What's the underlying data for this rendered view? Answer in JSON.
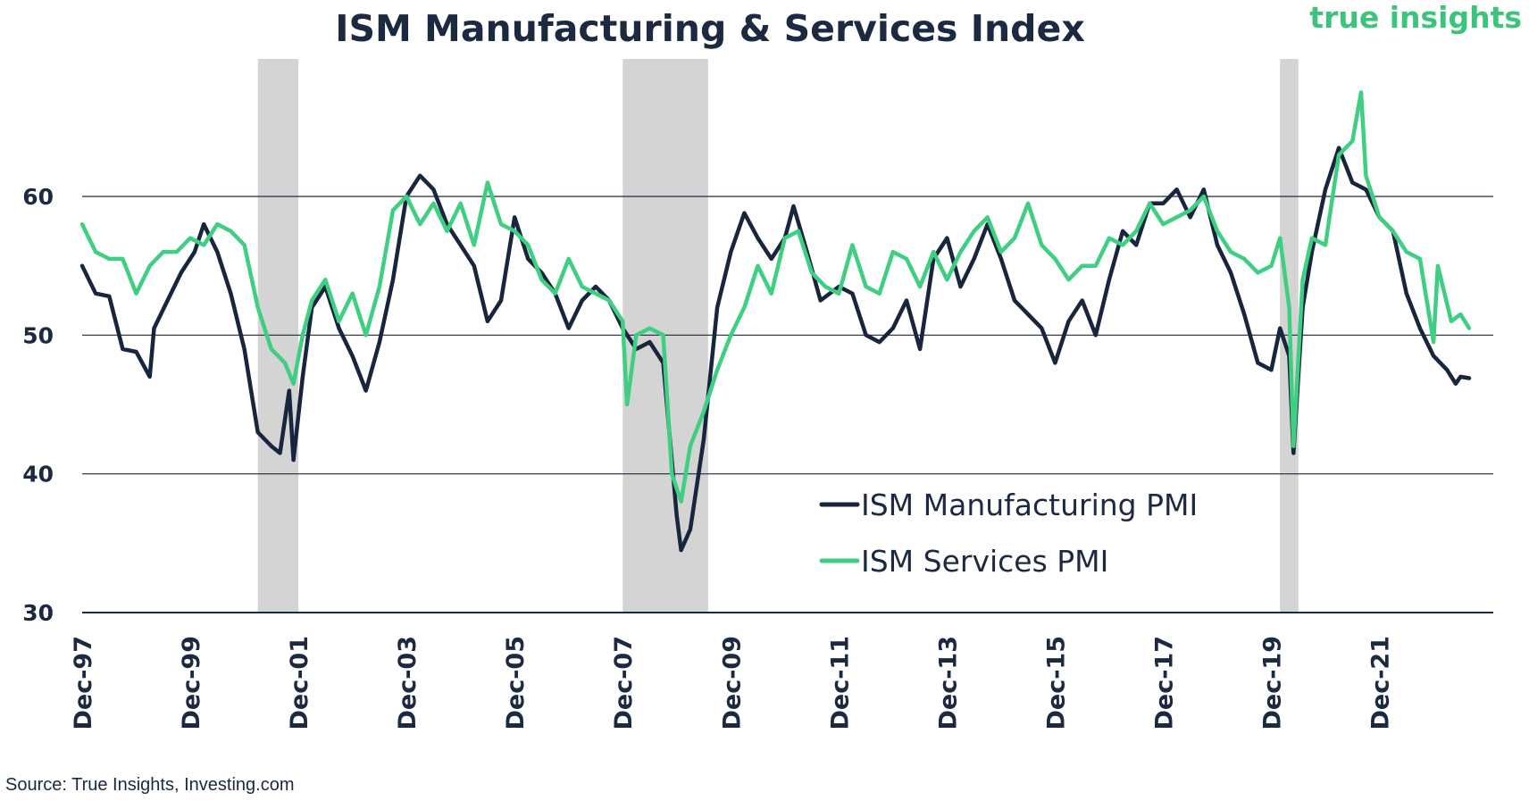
{
  "header": {
    "title": "ISM Manufacturing & Services Index",
    "brand": "true insights"
  },
  "footer": {
    "source": "Source: True Insights, Investing.com"
  },
  "colors": {
    "manufacturing": "#17253d",
    "services": "#3fcf82",
    "recession_shade": "#d4d4d4",
    "gridline": "#1b2a41"
  },
  "chart_data": {
    "type": "line",
    "title": "ISM Manufacturing & Services Index",
    "xlabel": "",
    "ylabel": "",
    "ylim": [
      30,
      69
    ],
    "yticks": [
      30,
      40,
      50,
      60
    ],
    "grid": true,
    "legend_position": "bottom-right",
    "xticks": [
      {
        "label": "Dec-97",
        "year": 1997.92
      },
      {
        "label": "Dec-99",
        "year": 1999.92
      },
      {
        "label": "Dec-01",
        "year": 2001.92
      },
      {
        "label": "Dec-03",
        "year": 2003.92
      },
      {
        "label": "Dec-05",
        "year": 2005.92
      },
      {
        "label": "Dec-07",
        "year": 2007.92
      },
      {
        "label": "Dec-09",
        "year": 2009.92
      },
      {
        "label": "Dec-11",
        "year": 2011.92
      },
      {
        "label": "Dec-13",
        "year": 2013.92
      },
      {
        "label": "Dec-15",
        "year": 2015.92
      },
      {
        "label": "Dec-17",
        "year": 2017.92
      },
      {
        "label": "Dec-19",
        "year": 2019.92
      },
      {
        "label": "Dec-21",
        "year": 2021.92
      }
    ],
    "recessions": [
      {
        "start": 2001.17,
        "end": 2001.92
      },
      {
        "start": 2007.92,
        "end": 2009.5
      },
      {
        "start": 2020.08,
        "end": 2020.42
      }
    ],
    "series": [
      {
        "name": "ISM Manufacturing PMI",
        "points": [
          [
            1997.92,
            55.0
          ],
          [
            1998.17,
            53.0
          ],
          [
            1998.42,
            52.8
          ],
          [
            1998.67,
            49.0
          ],
          [
            1998.92,
            48.8
          ],
          [
            1999.17,
            47.0
          ],
          [
            1999.25,
            50.5
          ],
          [
            1999.5,
            52.5
          ],
          [
            1999.75,
            54.5
          ],
          [
            2000.0,
            56.0
          ],
          [
            2000.17,
            58.0
          ],
          [
            2000.42,
            56.0
          ],
          [
            2000.67,
            53.0
          ],
          [
            2000.92,
            49.0
          ],
          [
            2001.17,
            43.0
          ],
          [
            2001.42,
            42.0
          ],
          [
            2001.58,
            41.5
          ],
          [
            2001.75,
            46.0
          ],
          [
            2001.83,
            41.0
          ],
          [
            2002.0,
            47.0
          ],
          [
            2002.17,
            52.0
          ],
          [
            2002.42,
            53.5
          ],
          [
            2002.67,
            50.5
          ],
          [
            2002.92,
            48.5
          ],
          [
            2003.17,
            46.0
          ],
          [
            2003.42,
            49.5
          ],
          [
            2003.67,
            54.0
          ],
          [
            2003.92,
            60.0
          ],
          [
            2004.17,
            61.5
          ],
          [
            2004.42,
            60.5
          ],
          [
            2004.67,
            58.0
          ],
          [
            2004.92,
            56.5
          ],
          [
            2005.17,
            55.0
          ],
          [
            2005.42,
            51.0
          ],
          [
            2005.67,
            52.5
          ],
          [
            2005.92,
            58.5
          ],
          [
            2006.17,
            55.5
          ],
          [
            2006.42,
            54.5
          ],
          [
            2006.67,
            53.0
          ],
          [
            2006.92,
            50.5
          ],
          [
            2007.17,
            52.5
          ],
          [
            2007.42,
            53.5
          ],
          [
            2007.67,
            52.5
          ],
          [
            2007.92,
            50.5
          ],
          [
            2008.17,
            49.0
          ],
          [
            2008.42,
            49.5
          ],
          [
            2008.67,
            48.0
          ],
          [
            2008.92,
            37.0
          ],
          [
            2009.0,
            34.5
          ],
          [
            2009.17,
            36.0
          ],
          [
            2009.42,
            42.5
          ],
          [
            2009.67,
            52.0
          ],
          [
            2009.92,
            56.0
          ],
          [
            2010.17,
            58.8
          ],
          [
            2010.42,
            57.0
          ],
          [
            2010.67,
            55.5
          ],
          [
            2010.92,
            57.0
          ],
          [
            2011.08,
            59.3
          ],
          [
            2011.33,
            56.0
          ],
          [
            2011.58,
            52.5
          ],
          [
            2011.92,
            53.5
          ],
          [
            2012.17,
            53.0
          ],
          [
            2012.42,
            50.0
          ],
          [
            2012.67,
            49.5
          ],
          [
            2012.92,
            50.5
          ],
          [
            2013.17,
            52.5
          ],
          [
            2013.42,
            49.0
          ],
          [
            2013.67,
            55.5
          ],
          [
            2013.92,
            57.0
          ],
          [
            2014.17,
            53.5
          ],
          [
            2014.42,
            55.5
          ],
          [
            2014.67,
            58.0
          ],
          [
            2014.92,
            55.5
          ],
          [
            2015.17,
            52.5
          ],
          [
            2015.42,
            51.5
          ],
          [
            2015.67,
            50.5
          ],
          [
            2015.92,
            48.0
          ],
          [
            2016.17,
            51.0
          ],
          [
            2016.42,
            52.5
          ],
          [
            2016.67,
            50.0
          ],
          [
            2016.92,
            54.0
          ],
          [
            2017.17,
            57.5
          ],
          [
            2017.42,
            56.5
          ],
          [
            2017.67,
            59.5
          ],
          [
            2017.92,
            59.5
          ],
          [
            2018.17,
            60.5
          ],
          [
            2018.42,
            58.5
          ],
          [
            2018.67,
            60.5
          ],
          [
            2018.92,
            56.5
          ],
          [
            2019.17,
            54.5
          ],
          [
            2019.42,
            51.5
          ],
          [
            2019.67,
            48.0
          ],
          [
            2019.92,
            47.5
          ],
          [
            2020.08,
            50.5
          ],
          [
            2020.25,
            48.5
          ],
          [
            2020.33,
            41.5
          ],
          [
            2020.5,
            52.0
          ],
          [
            2020.67,
            56.0
          ],
          [
            2020.92,
            60.5
          ],
          [
            2021.17,
            63.5
          ],
          [
            2021.42,
            61.0
          ],
          [
            2021.67,
            60.5
          ],
          [
            2021.92,
            58.5
          ],
          [
            2022.17,
            57.5
          ],
          [
            2022.42,
            53.0
          ],
          [
            2022.67,
            50.5
          ],
          [
            2022.92,
            48.5
          ],
          [
            2023.17,
            47.5
          ],
          [
            2023.33,
            46.5
          ],
          [
            2023.42,
            47.0
          ],
          [
            2023.58,
            46.9
          ]
        ]
      },
      {
        "name": "ISM Services PMI",
        "points": [
          [
            1997.92,
            58.0
          ],
          [
            1998.17,
            56.0
          ],
          [
            1998.42,
            55.5
          ],
          [
            1998.67,
            55.5
          ],
          [
            1998.92,
            53.0
          ],
          [
            1999.17,
            55.0
          ],
          [
            1999.42,
            56.0
          ],
          [
            1999.67,
            56.0
          ],
          [
            1999.92,
            57.0
          ],
          [
            2000.17,
            56.5
          ],
          [
            2000.42,
            58.0
          ],
          [
            2000.67,
            57.5
          ],
          [
            2000.92,
            56.5
          ],
          [
            2001.17,
            52.0
          ],
          [
            2001.42,
            49.0
          ],
          [
            2001.67,
            48.0
          ],
          [
            2001.83,
            46.5
          ],
          [
            2002.0,
            50.0
          ],
          [
            2002.17,
            52.5
          ],
          [
            2002.42,
            54.0
          ],
          [
            2002.67,
            51.0
          ],
          [
            2002.92,
            53.0
          ],
          [
            2003.17,
            50.0
          ],
          [
            2003.42,
            53.5
          ],
          [
            2003.67,
            59.0
          ],
          [
            2003.92,
            60.0
          ],
          [
            2004.17,
            58.0
          ],
          [
            2004.42,
            59.5
          ],
          [
            2004.67,
            57.5
          ],
          [
            2004.92,
            59.5
          ],
          [
            2005.17,
            56.5
          ],
          [
            2005.42,
            61.0
          ],
          [
            2005.67,
            58.0
          ],
          [
            2005.92,
            57.5
          ],
          [
            2006.17,
            56.5
          ],
          [
            2006.42,
            54.0
          ],
          [
            2006.67,
            53.0
          ],
          [
            2006.92,
            55.5
          ],
          [
            2007.17,
            53.5
          ],
          [
            2007.42,
            53.0
          ],
          [
            2007.67,
            52.5
          ],
          [
            2007.92,
            51.0
          ],
          [
            2008.0,
            45.0
          ],
          [
            2008.17,
            50.0
          ],
          [
            2008.42,
            50.5
          ],
          [
            2008.67,
            50.0
          ],
          [
            2008.83,
            40.0
          ],
          [
            2009.0,
            38.0
          ],
          [
            2009.17,
            42.0
          ],
          [
            2009.42,
            44.5
          ],
          [
            2009.67,
            47.5
          ],
          [
            2009.92,
            50.0
          ],
          [
            2010.17,
            52.0
          ],
          [
            2010.42,
            55.0
          ],
          [
            2010.67,
            53.0
          ],
          [
            2010.92,
            57.0
          ],
          [
            2011.17,
            57.5
          ],
          [
            2011.42,
            54.5
          ],
          [
            2011.67,
            53.5
          ],
          [
            2011.92,
            53.0
          ],
          [
            2012.17,
            56.5
          ],
          [
            2012.42,
            53.5
          ],
          [
            2012.67,
            53.0
          ],
          [
            2012.92,
            56.0
          ],
          [
            2013.17,
            55.5
          ],
          [
            2013.42,
            53.5
          ],
          [
            2013.67,
            56.0
          ],
          [
            2013.92,
            54.0
          ],
          [
            2014.17,
            56.0
          ],
          [
            2014.42,
            57.5
          ],
          [
            2014.67,
            58.5
          ],
          [
            2014.92,
            56.0
          ],
          [
            2015.17,
            57.0
          ],
          [
            2015.42,
            59.5
          ],
          [
            2015.67,
            56.5
          ],
          [
            2015.92,
            55.5
          ],
          [
            2016.17,
            54.0
          ],
          [
            2016.42,
            55.0
          ],
          [
            2016.67,
            55.0
          ],
          [
            2016.92,
            57.0
          ],
          [
            2017.17,
            56.5
          ],
          [
            2017.42,
            57.5
          ],
          [
            2017.67,
            59.5
          ],
          [
            2017.92,
            58.0
          ],
          [
            2018.17,
            58.5
          ],
          [
            2018.42,
            59.0
          ],
          [
            2018.67,
            60.0
          ],
          [
            2018.92,
            57.5
          ],
          [
            2019.17,
            56.0
          ],
          [
            2019.42,
            55.5
          ],
          [
            2019.67,
            54.5
          ],
          [
            2019.92,
            55.0
          ],
          [
            2020.08,
            57.0
          ],
          [
            2020.25,
            52.0
          ],
          [
            2020.33,
            42.0
          ],
          [
            2020.5,
            54.0
          ],
          [
            2020.67,
            57.0
          ],
          [
            2020.92,
            56.5
          ],
          [
            2021.17,
            63.0
          ],
          [
            2021.42,
            64.0
          ],
          [
            2021.58,
            67.5
          ],
          [
            2021.67,
            61.5
          ],
          [
            2021.92,
            58.5
          ],
          [
            2022.17,
            57.5
          ],
          [
            2022.42,
            56.0
          ],
          [
            2022.67,
            55.5
          ],
          [
            2022.92,
            49.5
          ],
          [
            2023.0,
            55.0
          ],
          [
            2023.25,
            51.0
          ],
          [
            2023.42,
            51.5
          ],
          [
            2023.58,
            50.5
          ]
        ]
      }
    ]
  }
}
